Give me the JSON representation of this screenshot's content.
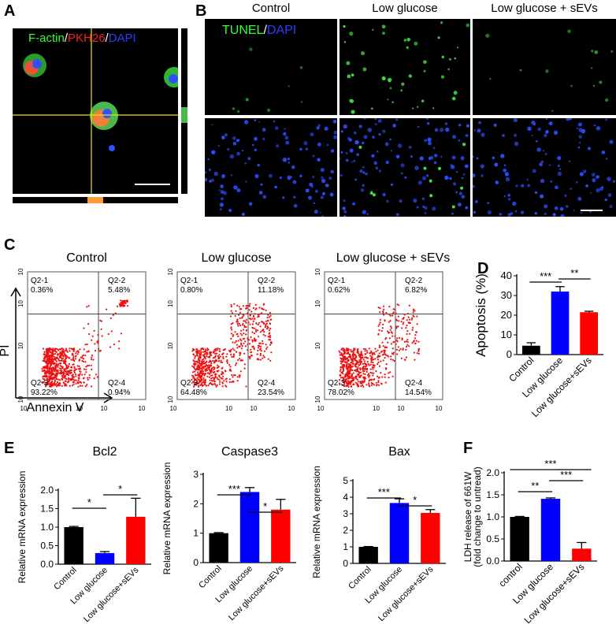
{
  "panels": {
    "A": "A",
    "B": "B",
    "C": "C",
    "D": "D",
    "E": "E",
    "F": "F"
  },
  "colors": {
    "control": "#000000",
    "low_glucose": "#0000ff",
    "sevs": "#ff0000",
    "factin": "#33ff33",
    "pkh26": "#ff2020",
    "dapi": "#2a3dff",
    "crosshair": "#e8e800"
  },
  "panelA": {
    "stain_factin": "F-actin",
    "sep1": "/",
    "stain_pkh26": "PKH26",
    "sep2": "/",
    "stain_dapi": "DAPI"
  },
  "panelB": {
    "columns": [
      "Control",
      "Low glucose",
      "Low glucose + sEVs"
    ],
    "stain_tunel": "TUNEL",
    "sep": "/",
    "stain_dapi": "DAPI"
  },
  "panelC": {
    "groups": [
      "Control",
      "Low glucose",
      "Low glucose + sEVs"
    ],
    "x_axis_label": "Annexin V",
    "y_axis_label": "PI",
    "x_ticks": [
      {
        "b": "10",
        "e": "1.9"
      },
      {
        "b": "10",
        "e": "4"
      },
      {
        "b": "10",
        "e": "6"
      },
      {
        "b": "10",
        "e": "8.1"
      }
    ],
    "y_ticks": [
      {
        "b": "10",
        "e": "6.9"
      },
      {
        "b": "10",
        "e": "5"
      },
      {
        "b": "10",
        "e": "3"
      },
      {
        "b": "10",
        "e": "0.7"
      }
    ],
    "quadrants": [
      {
        "q1": [
          "Q2-1",
          "0.36%"
        ],
        "q2": [
          "Q2-2",
          "5.48%"
        ],
        "q3": [
          "Q2-3",
          "93.22%"
        ],
        "q4": [
          "Q2-4",
          "0.94%"
        ]
      },
      {
        "q1": [
          "Q2-1",
          "0.80%"
        ],
        "q2": [
          "Q2-2",
          "11.18%"
        ],
        "q3": [
          "Q2-3",
          "64.48%"
        ],
        "q4": [
          "Q2-4",
          "23.54%"
        ]
      },
      {
        "q1": [
          "Q2-1",
          "0.62%"
        ],
        "q2": [
          "Q2-2",
          "6.82%"
        ],
        "q3": [
          "Q2-3",
          "78.02%"
        ],
        "q4": [
          "Q2-4",
          "14.54%"
        ]
      }
    ]
  },
  "chart_data": [
    {
      "panel": "D",
      "type": "bar",
      "categories": [
        "Control",
        "Low glucose",
        "Low glucose+sEVs"
      ],
      "values": [
        4.5,
        32,
        21.5
      ],
      "errors": [
        1.5,
        2.5,
        0.5
      ],
      "ylabel": "Apoptosis (%)",
      "ylim": [
        0,
        40
      ],
      "yticks": [
        0,
        10,
        20,
        30,
        40
      ],
      "ytick_labels": [
        "0",
        "10",
        "20",
        "30",
        "40"
      ],
      "significance": [
        {
          "from": 0,
          "to": 1,
          "label": "***"
        },
        {
          "from": 1,
          "to": 2,
          "label": "**"
        }
      ]
    },
    {
      "panel": "E",
      "type": "bar",
      "title": "Bcl2",
      "categories": [
        "Control",
        "Low glucose",
        "Low glucose+sEVs"
      ],
      "values": [
        1.0,
        0.3,
        1.28
      ],
      "errors": [
        0.02,
        0.04,
        0.5
      ],
      "ylabel": "Relative mRNA expression",
      "ylim": [
        0,
        2.0
      ],
      "yticks": [
        0,
        0.5,
        1.0,
        1.5,
        2.0
      ],
      "ytick_labels": [
        "0.0",
        "0.5",
        "1.0",
        "1.5",
        "2.0"
      ],
      "significance": [
        {
          "from": 0,
          "to": 1,
          "label": "*"
        },
        {
          "from": 1,
          "to": 2,
          "label": "*"
        }
      ]
    },
    {
      "panel": "E",
      "type": "bar",
      "title": "Caspase3",
      "categories": [
        "Control",
        "Low glucose",
        "Low glucose+sEVs"
      ],
      "values": [
        1.0,
        2.4,
        1.8
      ],
      "errors": [
        0.02,
        0.15,
        0.35
      ],
      "ylabel": "Relative mRNA expression",
      "ylim": [
        0,
        3
      ],
      "yticks": [
        0,
        1,
        2,
        3
      ],
      "ytick_labels": [
        "0",
        "1",
        "2",
        "3"
      ],
      "significance": [
        {
          "from": 0,
          "to": 1,
          "label": "***"
        },
        {
          "from": 1,
          "to": 2,
          "label": "*"
        }
      ]
    },
    {
      "panel": "E",
      "type": "bar",
      "title": "Bax",
      "categories": [
        "Control",
        "Low glucose",
        "Low glucose+sEVs"
      ],
      "values": [
        1.0,
        3.65,
        3.05
      ],
      "errors": [
        0.02,
        0.25,
        0.2
      ],
      "ylabel": "Relative mRNA expression",
      "ylim": [
        0,
        5
      ],
      "yticks": [
        0,
        1,
        2,
        3,
        4,
        5
      ],
      "ytick_labels": [
        "0",
        "1",
        "2",
        "3",
        "4",
        "5"
      ],
      "significance": [
        {
          "from": 0,
          "to": 1,
          "label": "***"
        },
        {
          "from": 1,
          "to": 2,
          "label": "*"
        }
      ]
    },
    {
      "panel": "F",
      "type": "bar",
      "categories": [
        "control",
        "Low glucose",
        "Low glucose+sEVs"
      ],
      "values": [
        1.0,
        1.41,
        0.28
      ],
      "errors": [
        0.01,
        0.02,
        0.14
      ],
      "ylabel": [
        "LDH release of 661W",
        "(fold change to untread)"
      ],
      "ylim": [
        0,
        2.0
      ],
      "yticks": [
        0,
        0.5,
        1.0,
        1.5,
        2.0
      ],
      "ytick_labels": [
        "0.0",
        "0.5",
        "1.0",
        "1.5",
        "2.0"
      ],
      "significance": [
        {
          "from": 0,
          "to": 1,
          "label": "**"
        },
        {
          "from": 1,
          "to": 2,
          "label": "***"
        },
        {
          "from": 0,
          "to": 2,
          "label": "***"
        }
      ]
    }
  ]
}
